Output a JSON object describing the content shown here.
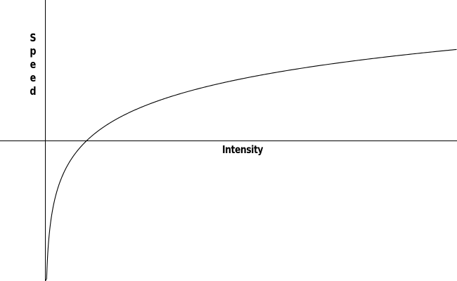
{
  "chart_data": {
    "type": "line",
    "title": "",
    "xlabel": "Intensity",
    "ylabel": "Speed",
    "xlim": [
      0,
      10
    ],
    "ylim": [
      -3.47,
      1.6
    ],
    "grid": false,
    "legend": "none",
    "axis_color": "#000000",
    "line_color": "#000000",
    "series": [
      {
        "function": "natural_log",
        "x": [
          0.01,
          0.05,
          0.1,
          0.2,
          0.3,
          0.5,
          0.75,
          1,
          1.5,
          2,
          3,
          4,
          5,
          6,
          7,
          8,
          9,
          10
        ],
        "values": [
          -3.47,
          -2.0,
          -1.52,
          -1.03,
          -0.74,
          -0.4,
          -0.17,
          0,
          0.25,
          0.43,
          0.69,
          0.91,
          1.07,
          1.2,
          1.3,
          1.39,
          1.45,
          1.5
        ]
      }
    ]
  }
}
